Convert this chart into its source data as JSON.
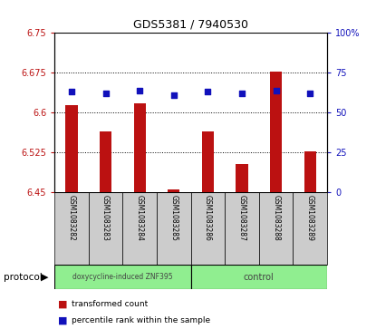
{
  "title": "GDS5381 / 7940530",
  "samples": [
    "GSM1083282",
    "GSM1083283",
    "GSM1083284",
    "GSM1083285",
    "GSM1083286",
    "GSM1083287",
    "GSM1083288",
    "GSM1083289"
  ],
  "transformed_count": [
    6.615,
    6.565,
    6.618,
    6.455,
    6.565,
    6.503,
    6.678,
    6.527
  ],
  "percentile_rank": [
    63,
    62,
    64,
    61,
    63,
    62,
    64,
    62
  ],
  "ylim_left": [
    6.45,
    6.75
  ],
  "ylim_right": [
    0,
    100
  ],
  "yticks_left": [
    6.45,
    6.525,
    6.6,
    6.675,
    6.75
  ],
  "yticks_right": [
    0,
    25,
    50,
    75,
    100
  ],
  "ytick_labels_left": [
    "6.45",
    "6.525",
    "6.6",
    "6.675",
    "6.75"
  ],
  "ytick_labels_right": [
    "0",
    "25",
    "50",
    "75",
    "100%"
  ],
  "baseline": 6.45,
  "bar_color": "#bb1111",
  "dot_color": "#1111bb",
  "grid_color": "#000000",
  "protocol_bg": "#90EE90",
  "protocol_labels": [
    "doxycycline-induced ZNF395",
    "control"
  ],
  "protocol_groups": [
    4,
    4
  ],
  "legend_bar_label": "transformed count",
  "legend_dot_label": "percentile rank within the sample",
  "protocol_label": "protocol",
  "tick_bg": "#cccccc",
  "bar_width": 0.35
}
